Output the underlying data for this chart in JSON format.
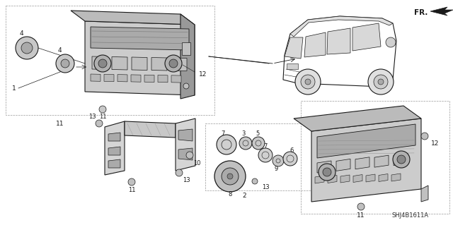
{
  "diagram_id": "SHJ4B1611A",
  "bg_color": "#ffffff",
  "line_color": "#1a1a1a",
  "fig_width": 6.4,
  "fig_height": 3.19,
  "dpi": 100,
  "gray_fill": "#cccccc",
  "dark_fill": "#999999",
  "mid_fill": "#bbbbbb"
}
